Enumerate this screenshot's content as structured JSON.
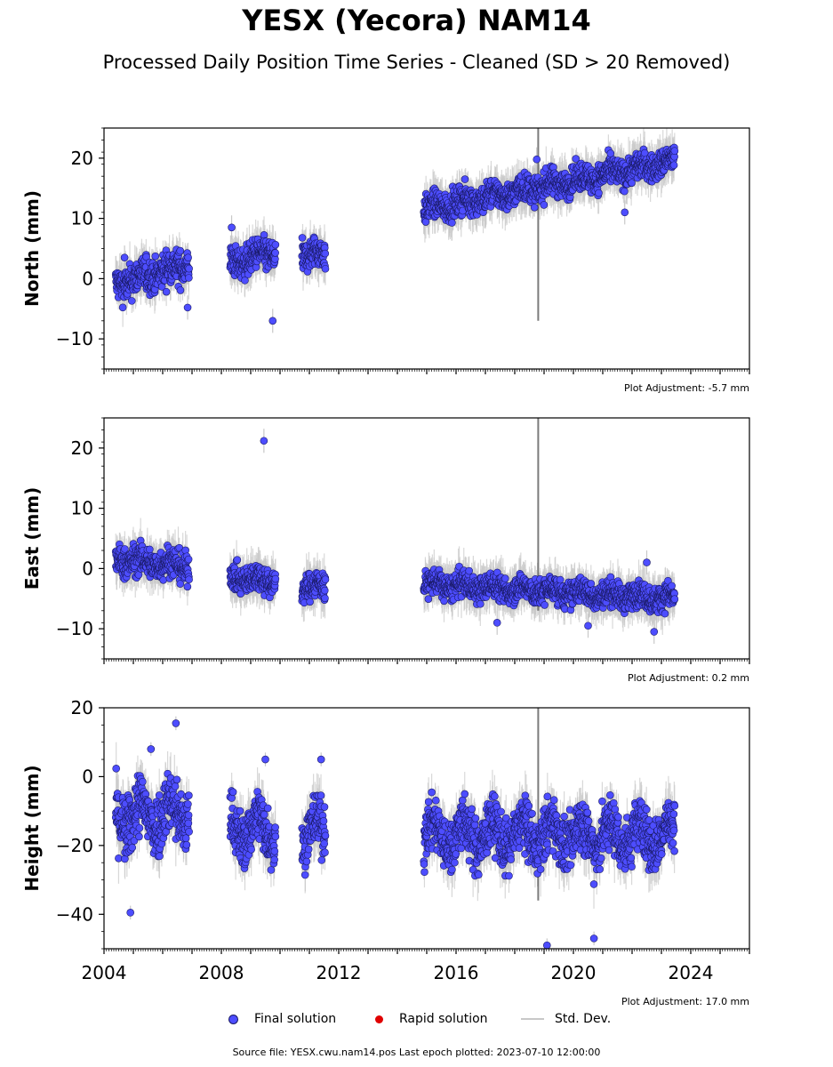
{
  "title": "YESX (Yecora) NAM14",
  "subtitle": "Processed Daily Position Time Series - Cleaned (SD > 20 Removed)",
  "colors": {
    "final": "#4d4dff",
    "final_edge": "#1a1a66",
    "rapid": "#e00000",
    "stddev": "#c8c8c8",
    "stddev_dense": "#5a5a5a"
  },
  "legend": {
    "final": "Final solution",
    "rapid": "Rapid solution",
    "stddev": "Std. Dev."
  },
  "footer": "Source file: YESX.cwu.nam14.pos  Last epoch plotted: 2023-07-10 12:00:00",
  "chart_data": [
    {
      "type": "scatter",
      "ylabel": "North (mm)",
      "xlim": [
        2004,
        2026
      ],
      "ylim": [
        -15,
        25
      ],
      "yticks": [
        -10,
        0,
        10,
        20
      ],
      "yminor": 2,
      "xticks": [
        "2004",
        "2008",
        "2012",
        "2016",
        "2020",
        "2024"
      ],
      "adjustment": "Plot Adjustment: -5.7 mm",
      "segments": [
        {
          "x": [
            2004.4,
            2006.9
          ],
          "y": [
            -1.0,
            2.5
          ],
          "spread": 2.0
        },
        {
          "x": [
            2008.3,
            2009.85
          ],
          "y": [
            2.5,
            4.5
          ],
          "spread": 1.8
        },
        {
          "x": [
            2010.75,
            2011.55
          ],
          "y": [
            4.0,
            4.0
          ],
          "spread": 1.8
        },
        {
          "x": [
            2014.9,
            2023.45
          ],
          "y": [
            11.5,
            19.5
          ],
          "spread": 1.6
        }
      ],
      "outliers": [
        {
          "x": 2009.75,
          "y": -7.0
        },
        {
          "x": 2008.35,
          "y": 8.5
        },
        {
          "x": 2006.85,
          "y": -4.8
        },
        {
          "x": 2018.75,
          "y": 19.8
        },
        {
          "x": 2021.75,
          "y": 11.0
        },
        {
          "x": 2004.7,
          "y": 3.5
        }
      ]
    },
    {
      "type": "scatter",
      "ylabel": "East (mm)",
      "xlim": [
        2004,
        2026
      ],
      "ylim": [
        -15,
        25
      ],
      "yticks": [
        -10,
        0,
        10,
        20
      ],
      "yminor": 2,
      "xticks": [
        "2004",
        "2008",
        "2012",
        "2016",
        "2020",
        "2024"
      ],
      "adjustment": "Plot Adjustment: 0.2 mm",
      "segments": [
        {
          "x": [
            2004.4,
            2006.9
          ],
          "y": [
            1.5,
            0.5
          ],
          "spread": 1.8
        },
        {
          "x": [
            2008.3,
            2009.85
          ],
          "y": [
            -1.5,
            -2.0
          ],
          "spread": 1.6
        },
        {
          "x": [
            2010.75,
            2011.55
          ],
          "y": [
            -3.0,
            -3.0
          ],
          "spread": 1.6
        },
        {
          "x": [
            2014.9,
            2023.45
          ],
          "y": [
            -2.5,
            -5.0
          ],
          "spread": 1.5
        }
      ],
      "outliers": [
        {
          "x": 2009.45,
          "y": 21.2
        },
        {
          "x": 2022.75,
          "y": -10.5
        },
        {
          "x": 2020.5,
          "y": -9.5
        },
        {
          "x": 2017.4,
          "y": -9.0
        },
        {
          "x": 2022.5,
          "y": 1.0
        }
      ]
    },
    {
      "type": "scatter",
      "ylabel": "Height (mm)",
      "xlim": [
        2004,
        2026
      ],
      "ylim": [
        -50,
        20
      ],
      "yticks": [
        -40,
        -20,
        0,
        20
      ],
      "yminor": 5,
      "xticks": [
        "2004",
        "2008",
        "2012",
        "2016",
        "2020",
        "2024"
      ],
      "adjustment": "Plot Adjustment: 17.0 mm",
      "segments": [
        {
          "x": [
            2004.4,
            2006.9
          ],
          "y": [
            -12.0,
            -10.0
          ],
          "spread": 6.5
        },
        {
          "x": [
            2008.3,
            2009.85
          ],
          "y": [
            -15.0,
            -15.0
          ],
          "spread": 5.5
        },
        {
          "x": [
            2010.75,
            2011.55
          ],
          "y": [
            -16.0,
            -16.0
          ],
          "spread": 5.5
        },
        {
          "x": [
            2014.9,
            2023.45
          ],
          "y": [
            -17.0,
            -17.0
          ],
          "spread": 5.5
        }
      ],
      "outliers": [
        {
          "x": 2004.9,
          "y": -39.5
        },
        {
          "x": 2019.1,
          "y": -49.0
        },
        {
          "x": 2020.7,
          "y": -47.0
        },
        {
          "x": 2006.45,
          "y": 15.5
        },
        {
          "x": 2005.6,
          "y": 8.0
        },
        {
          "x": 2009.5,
          "y": 5.0
        },
        {
          "x": 2011.4,
          "y": 5.0
        }
      ]
    }
  ]
}
